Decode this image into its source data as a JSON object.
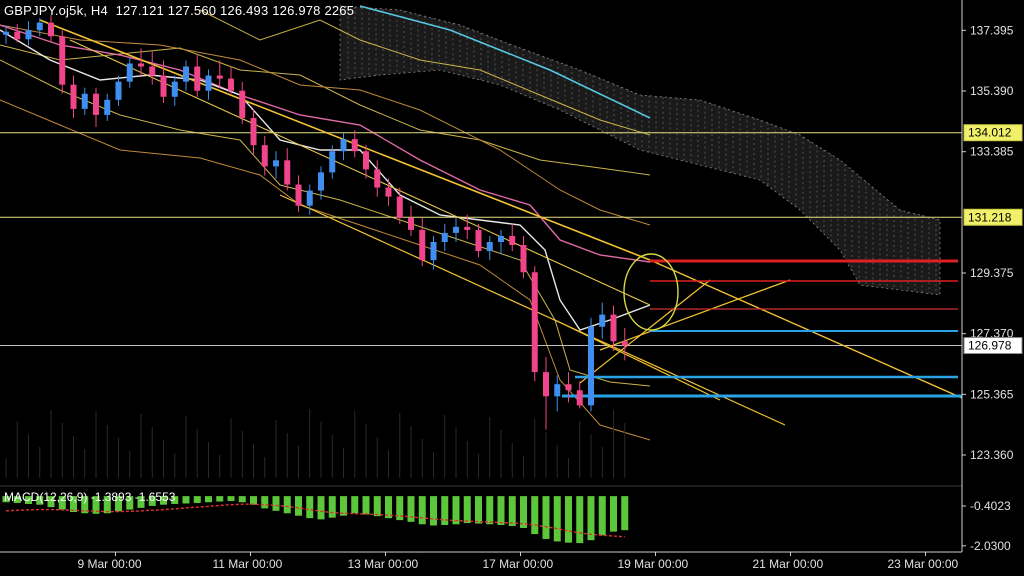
{
  "header": {
    "symbol": "GBPJPY.oj5k",
    "timeframe": "H4",
    "ohlc": [
      "127.121",
      "127.560",
      "126.493",
      "126.978"
    ],
    "bars": "2265"
  },
  "chart_data": {
    "type": "candlestick",
    "price_axis": {
      "range": [
        122.6,
        138.2
      ],
      "ticks": [
        "137.395",
        "135.390",
        "133.385",
        "129.375",
        "127.370",
        "125.365",
        "123.360"
      ]
    },
    "price_boxes": [
      {
        "value": "134.012",
        "style": "level"
      },
      {
        "value": "131.218",
        "style": "level"
      },
      {
        "value": "126.978",
        "style": "current"
      }
    ],
    "date_axis": {
      "labels": [
        {
          "date": "9 Mar 00:00",
          "bar": 6
        },
        {
          "date": "11 Mar 00:00",
          "bar": 18
        },
        {
          "date": "13 Mar 00:00",
          "bar": 30
        },
        {
          "date": "17 Mar 00:00",
          "bar": 42
        },
        {
          "date": "19 Mar 00:00",
          "bar": 54
        },
        {
          "date": "21 Mar 00:00",
          "bar": 66
        },
        {
          "date": "23 Mar 00:00",
          "bar": 78
        }
      ]
    },
    "candles": [
      [
        137.25,
        137.55,
        136.95,
        137.35
      ],
      [
        137.35,
        137.6,
        137.0,
        137.1
      ],
      [
        137.1,
        137.7,
        136.9,
        137.4
      ],
      [
        137.4,
        137.8,
        137.2,
        137.65
      ],
      [
        137.65,
        137.9,
        137.0,
        137.2
      ],
      [
        137.2,
        137.4,
        135.3,
        135.6
      ],
      [
        135.6,
        135.9,
        134.5,
        134.8
      ],
      [
        134.8,
        135.5,
        134.6,
        135.3
      ],
      [
        135.3,
        135.5,
        134.2,
        134.6
      ],
      [
        134.6,
        135.3,
        134.4,
        135.1
      ],
      [
        135.1,
        135.9,
        134.9,
        135.7
      ],
      [
        135.7,
        136.5,
        135.5,
        136.3
      ],
      [
        136.3,
        136.8,
        135.9,
        136.2
      ],
      [
        136.2,
        136.7,
        135.6,
        135.9
      ],
      [
        135.9,
        136.4,
        135.0,
        135.2
      ],
      [
        135.2,
        135.9,
        134.9,
        135.7
      ],
      [
        135.7,
        136.4,
        135.4,
        136.2
      ],
      [
        136.2,
        136.6,
        135.2,
        135.4
      ],
      [
        135.4,
        136.1,
        135.1,
        135.9
      ],
      [
        135.9,
        136.4,
        135.5,
        135.8
      ],
      [
        135.8,
        136.2,
        135.3,
        135.4
      ],
      [
        135.4,
        135.7,
        134.3,
        134.5
      ],
      [
        134.5,
        134.8,
        133.3,
        133.6
      ],
      [
        133.6,
        133.9,
        132.6,
        132.9
      ],
      [
        132.9,
        133.4,
        132.5,
        133.1
      ],
      [
        133.1,
        133.5,
        132.1,
        132.3
      ],
      [
        132.3,
        132.6,
        131.4,
        131.6
      ],
      [
        131.6,
        132.3,
        131.3,
        132.1
      ],
      [
        132.1,
        132.9,
        131.8,
        132.7
      ],
      [
        132.7,
        133.6,
        132.5,
        133.4
      ],
      [
        133.4,
        134.0,
        133.1,
        133.8
      ],
      [
        133.8,
        134.1,
        133.2,
        133.4
      ],
      [
        133.4,
        133.6,
        132.5,
        132.8
      ],
      [
        132.8,
        133.1,
        131.9,
        132.2
      ],
      [
        132.2,
        132.5,
        131.6,
        131.9
      ],
      [
        131.9,
        132.2,
        131.0,
        131.2
      ],
      [
        131.2,
        131.6,
        130.6,
        130.8
      ],
      [
        130.8,
        131.2,
        129.6,
        129.8
      ],
      [
        129.8,
        130.6,
        129.5,
        130.4
      ],
      [
        130.4,
        131.0,
        130.1,
        130.7
      ],
      [
        130.7,
        131.2,
        130.4,
        130.9
      ],
      [
        130.9,
        131.3,
        130.5,
        130.8
      ],
      [
        130.8,
        131.0,
        129.9,
        130.1
      ],
      [
        130.1,
        130.6,
        129.8,
        130.4
      ],
      [
        130.4,
        130.8,
        130.0,
        130.6
      ],
      [
        130.6,
        131.0,
        130.1,
        130.3
      ],
      [
        130.3,
        130.6,
        129.2,
        129.4
      ],
      [
        129.4,
        129.6,
        125.8,
        126.1
      ],
      [
        126.1,
        126.6,
        124.2,
        125.3
      ],
      [
        125.3,
        126.0,
        124.8,
        125.7
      ],
      [
        125.7,
        126.1,
        125.1,
        125.5
      ],
      [
        125.5,
        125.8,
        124.9,
        125.0
      ],
      [
        125.0,
        127.9,
        124.8,
        127.6
      ],
      [
        127.6,
        128.4,
        127.2,
        128.0
      ],
      [
        128.0,
        128.3,
        126.8,
        127.12
      ],
      [
        127.12,
        127.56,
        126.49,
        126.98
      ]
    ],
    "macd": {
      "label": "MACD(12,26,9) -1.3893 -1.6553",
      "ticks": [
        "-0.4023",
        "-2.0300"
      ],
      "range": [
        -2.2,
        0.25
      ],
      "hist": [
        -0.25,
        -0.28,
        -0.32,
        -0.35,
        -0.45,
        -0.55,
        -0.65,
        -0.7,
        -0.72,
        -0.7,
        -0.62,
        -0.55,
        -0.48,
        -0.4,
        -0.35,
        -0.32,
        -0.3,
        -0.28,
        -0.25,
        -0.22,
        -0.2,
        -0.25,
        -0.35,
        -0.5,
        -0.6,
        -0.7,
        -0.8,
        -0.9,
        -0.95,
        -0.88,
        -0.8,
        -0.7,
        -0.75,
        -0.82,
        -0.9,
        -0.98,
        -1.05,
        -1.15,
        -1.2,
        -1.18,
        -1.15,
        -1.1,
        -1.12,
        -1.15,
        -1.18,
        -1.22,
        -1.3,
        -1.55,
        -1.75,
        -1.85,
        -1.9,
        -1.92,
        -1.8,
        -1.6,
        -1.45,
        -1.39
      ],
      "signal": [
        -0.6,
        -0.58,
        -0.56,
        -0.55,
        -0.55,
        -0.56,
        -0.58,
        -0.6,
        -0.62,
        -0.63,
        -0.63,
        -0.62,
        -0.6,
        -0.58,
        -0.55,
        -0.52,
        -0.48,
        -0.45,
        -0.42,
        -0.38,
        -0.35,
        -0.33,
        -0.33,
        -0.35,
        -0.38,
        -0.42,
        -0.48,
        -0.55,
        -0.62,
        -0.67,
        -0.7,
        -0.72,
        -0.73,
        -0.75,
        -0.78,
        -0.81,
        -0.85,
        -0.89,
        -0.93,
        -0.97,
        -1.0,
        -1.02,
        -1.04,
        -1.06,
        -1.08,
        -1.1,
        -1.13,
        -1.18,
        -1.25,
        -1.33,
        -1.42,
        -1.5,
        -1.56,
        -1.6,
        -1.63,
        -1.66
      ]
    }
  }
}
